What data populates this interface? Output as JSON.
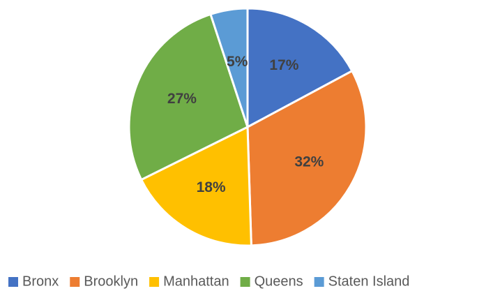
{
  "chart_data": {
    "type": "pie",
    "categories": [
      "Bronx",
      "Brooklyn",
      "Manhattan",
      "Queens",
      "Staten Island"
    ],
    "values": [
      17,
      32,
      18,
      27,
      5
    ],
    "value_labels": [
      "17%",
      "32%",
      "18%",
      "27%",
      "5%"
    ],
    "colors": [
      "#4472c4",
      "#ed7d31",
      "#ffc000",
      "#70ad47",
      "#5b9bd5"
    ],
    "legend": "bottom"
  }
}
